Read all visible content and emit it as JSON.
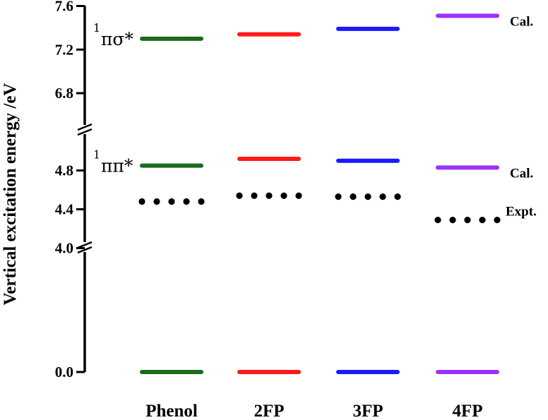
{
  "chart_data": {
    "type": "energy-level-diagram",
    "ylabel": "Vertical excitation energy /eV",
    "categories": [
      "Phenol",
      "2FP",
      "3FP",
      "4FP"
    ],
    "y_axis": {
      "broken": true,
      "segments": [
        {
          "range": [
            0.0,
            4.0
          ],
          "ticks": [
            0.0,
            4.0
          ],
          "tick_labels": [
            "0.0",
            "4.0"
          ]
        },
        {
          "range": [
            4.0,
            5.1
          ],
          "ticks": [
            4.0,
            4.4,
            4.8
          ],
          "tick_labels": [
            "4.0",
            "4.4",
            "4.8"
          ]
        },
        {
          "range": [
            6.6,
            7.6
          ],
          "ticks": [
            6.8,
            7.2,
            7.6
          ],
          "tick_labels": [
            "6.8",
            "7.2",
            "7.6"
          ]
        }
      ]
    },
    "series": [
      {
        "state": "ground",
        "type": "calculated",
        "values": [
          0.0,
          0.0,
          0.0,
          0.0
        ]
      },
      {
        "state": "pipi",
        "label_main": "ππ*",
        "label_sup": "1",
        "side_label": "Cal.",
        "type": "calculated",
        "values": [
          4.85,
          4.92,
          4.9,
          4.83
        ]
      },
      {
        "state": "pipi",
        "side_label": "Expt.",
        "type": "experimental",
        "values": [
          4.48,
          4.54,
          4.53,
          4.29
        ]
      },
      {
        "state": "pisigma",
        "label_main": "πσ*",
        "label_sup": "1",
        "side_label": "Cal.",
        "type": "calculated",
        "values": [
          7.3,
          7.34,
          7.39,
          7.51
        ]
      }
    ],
    "colors": {
      "Phenol": "#1a6b1a",
      "2FP": "#ff1a1a",
      "3FP": "#1a1aff",
      "4FP": "#9b30ff",
      "experimental": "#000000"
    },
    "grid": false,
    "legend": "none"
  }
}
